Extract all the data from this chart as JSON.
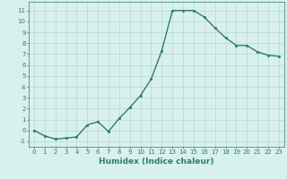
{
  "x": [
    0,
    1,
    2,
    3,
    4,
    5,
    6,
    7,
    8,
    9,
    10,
    11,
    12,
    13,
    14,
    15,
    16,
    17,
    18,
    19,
    20,
    21,
    22,
    23
  ],
  "y": [
    0,
    -0.5,
    -0.8,
    -0.7,
    -0.6,
    0.5,
    0.8,
    -0.1,
    1.1,
    2.1,
    3.2,
    4.7,
    7.3,
    11.0,
    11.0,
    11.0,
    10.4,
    9.4,
    8.5,
    7.8,
    7.8,
    7.2,
    6.9,
    6.8
  ],
  "line_color": "#2e7d6e",
  "marker": "s",
  "marker_size": 1.8,
  "background_color": "#d8f0ee",
  "grid_color": "#b8d8d4",
  "xlabel": "Humidex (Indice chaleur)",
  "ylim": [
    -1.5,
    11.8
  ],
  "xlim": [
    -0.5,
    23.5
  ],
  "yticks": [
    -1,
    0,
    1,
    2,
    3,
    4,
    5,
    6,
    7,
    8,
    9,
    10,
    11
  ],
  "xticks": [
    0,
    1,
    2,
    3,
    4,
    5,
    6,
    7,
    8,
    9,
    10,
    11,
    12,
    13,
    14,
    15,
    16,
    17,
    18,
    19,
    20,
    21,
    22,
    23
  ],
  "tick_fontsize": 5.0,
  "xlabel_fontsize": 6.5,
  "linewidth": 1.0
}
